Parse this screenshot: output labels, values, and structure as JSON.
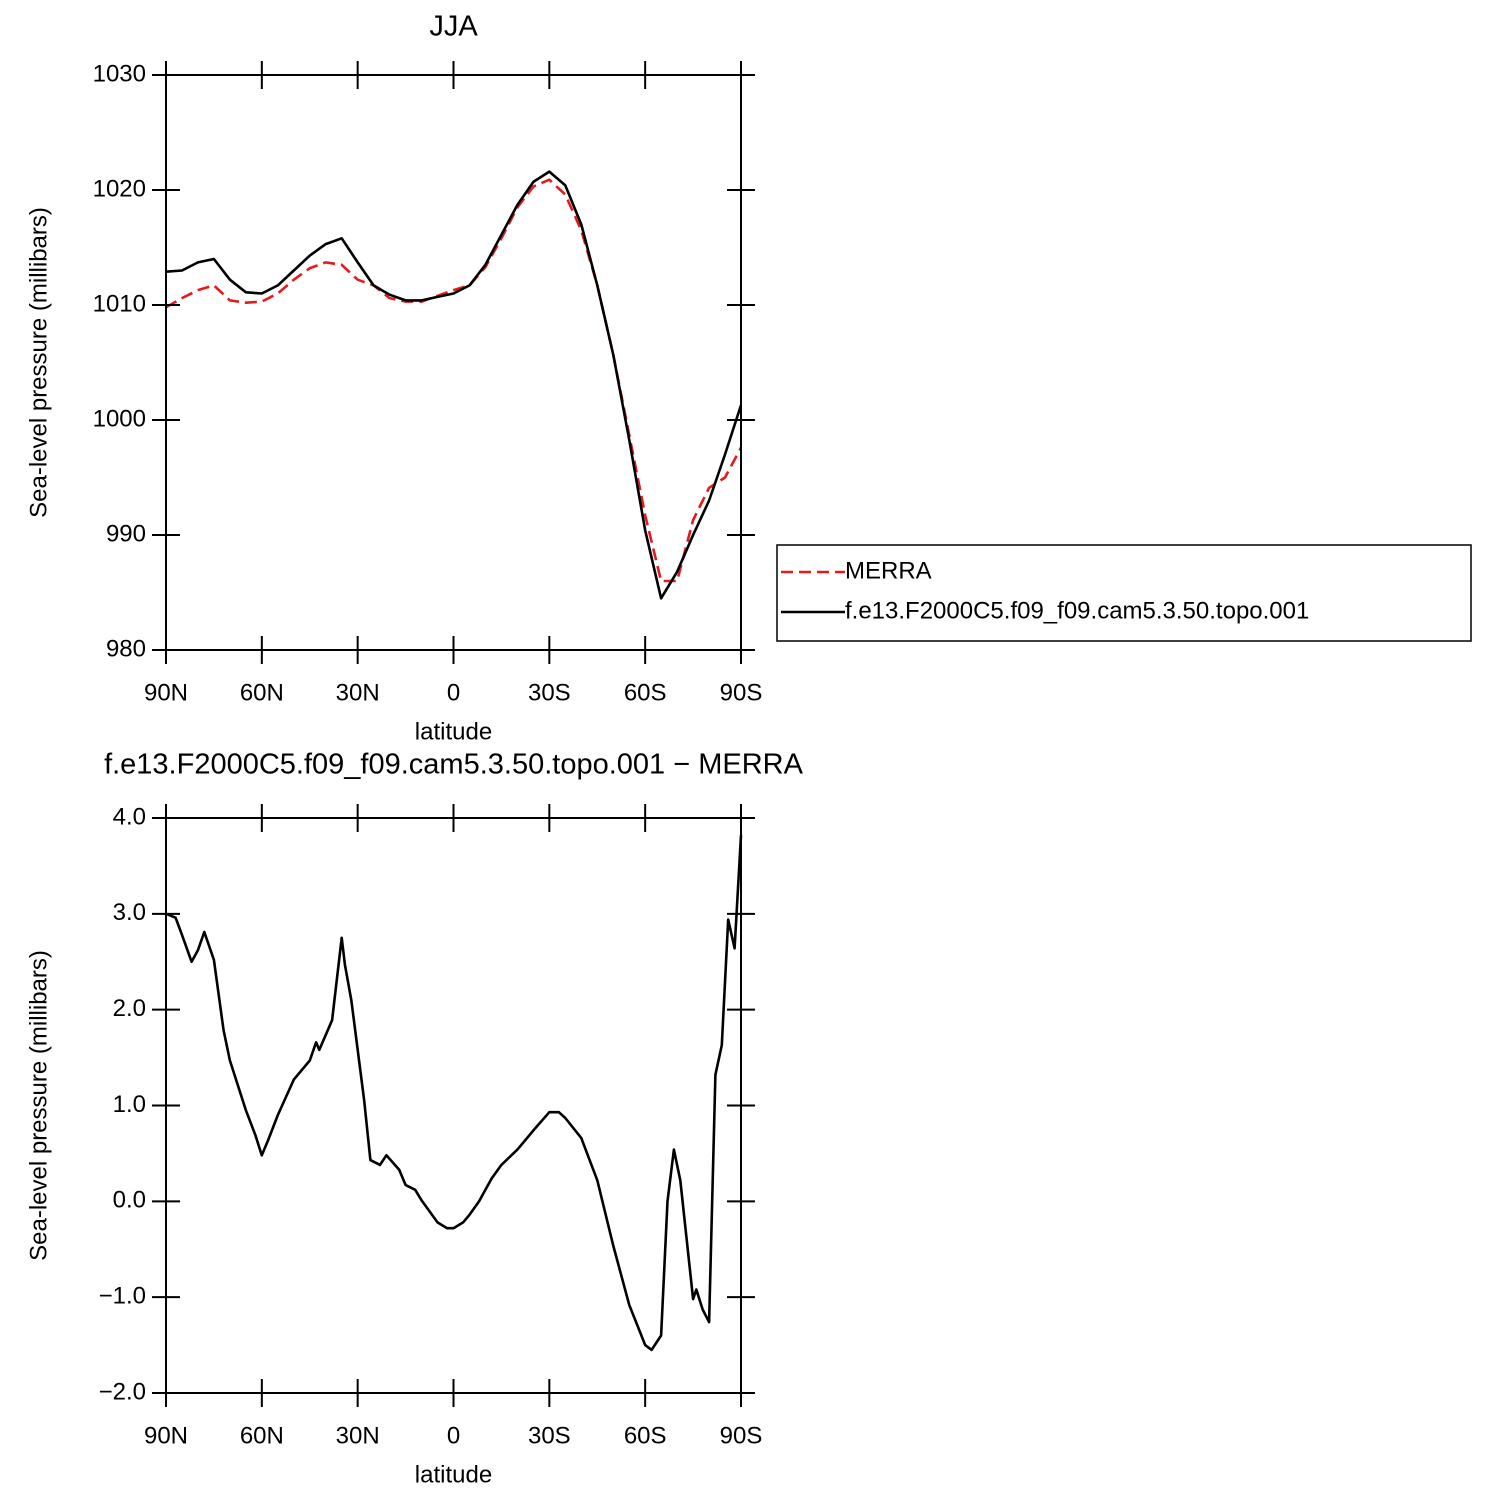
{
  "chart_data": [
    {
      "type": "line",
      "title": "JJA",
      "xlabel": "latitude",
      "ylabel": "Sea-level pressure (millibars)",
      "x": [
        90,
        85,
        80,
        75,
        70,
        65,
        60,
        55,
        50,
        45,
        40,
        35,
        30,
        25,
        20,
        15,
        10,
        5,
        0,
        -5,
        -10,
        -15,
        -20,
        -25,
        -30,
        -35,
        -40,
        -45,
        -50,
        -55,
        -60,
        -65,
        -70,
        -75,
        -80,
        -85,
        -90
      ],
      "xlim": [
        90,
        -90
      ],
      "xticks": [
        {
          "value": 90,
          "label": "90N"
        },
        {
          "value": 60,
          "label": "60N"
        },
        {
          "value": 30,
          "label": "30N"
        },
        0,
        {
          "value": -30,
          "label": "30S"
        },
        {
          "value": -60,
          "label": "60S"
        },
        {
          "value": -90,
          "label": "90S"
        }
      ],
      "ylim": [
        980,
        1030
      ],
      "yticks": [
        980,
        990,
        1000,
        1010,
        1020,
        1030
      ],
      "series": [
        {
          "name": "MERRA",
          "color": "#e41a1c",
          "dash": "dashed",
          "values": [
            1009.8,
            1010.6,
            1011.3,
            1011.7,
            1010.4,
            1010.2,
            1010.3,
            1011.0,
            1012.2,
            1013.2,
            1013.7,
            1013.5,
            1012.2,
            1011.7,
            1010.6,
            1010.3,
            1010.3,
            1010.8,
            1011.3,
            1011.7,
            1013.3,
            1015.8,
            1018.5,
            1020.3,
            1020.9,
            1019.6,
            1016.5,
            1011.7,
            1005.7,
            998.7,
            991.7,
            986.0,
            986.0,
            991.3,
            994.1,
            995.0,
            997.6
          ]
        },
        {
          "name": "f.e13.F2000C5.f09_f09.cam5.3.50.topo.001",
          "color": "#000000",
          "dash": "solid",
          "values": [
            1012.9,
            1013.0,
            1013.7,
            1014.0,
            1012.2,
            1011.1,
            1011.0,
            1011.7,
            1013.0,
            1014.3,
            1015.3,
            1015.8,
            1013.7,
            1011.7,
            1010.9,
            1010.4,
            1010.4,
            1010.7,
            1011.0,
            1011.7,
            1013.5,
            1016.1,
            1018.7,
            1020.7,
            1021.6,
            1020.4,
            1017.0,
            1011.7,
            1005.7,
            998.3,
            990.4,
            984.5,
            986.8,
            990.0,
            993.0,
            997.0,
            1001.3
          ]
        }
      ]
    },
    {
      "type": "line",
      "title": "f.e13.F2000C5.f09_f09.cam5.3.50.topo.001 − MERRA",
      "xlabel": "latitude",
      "ylabel": "Sea-level pressure (millibars)",
      "x": [
        90,
        87,
        85,
        82,
        80,
        78,
        75,
        72,
        70,
        65,
        62,
        60,
        58,
        55,
        50,
        45,
        43,
        42,
        38,
        35,
        34,
        32,
        30,
        28,
        26,
        23,
        21,
        17,
        15,
        12,
        10,
        5,
        2,
        0,
        -3,
        -5,
        -8,
        -10,
        -12,
        -15,
        -20,
        -25,
        -30,
        -33,
        -35,
        -40,
        -45,
        -50,
        -55,
        -60,
        -62,
        -65,
        -67,
        -69,
        -71,
        -73,
        -75,
        -76,
        -78,
        -80,
        -82,
        -84,
        -86,
        -88,
        -90
      ],
      "xlim": [
        90,
        -90
      ],
      "xticks": [
        {
          "value": 90,
          "label": "90N"
        },
        {
          "value": 60,
          "label": "60N"
        },
        {
          "value": 30,
          "label": "30N"
        },
        0,
        {
          "value": -30,
          "label": "30S"
        },
        {
          "value": -60,
          "label": "60S"
        },
        {
          "value": -90,
          "label": "90S"
        }
      ],
      "ylim": [
        -2,
        4
      ],
      "yticks": [
        {
          "value": -2,
          "label": "−2.0"
        },
        {
          "value": -1,
          "label": "−1.0"
        },
        {
          "value": 0,
          "label": "0.0"
        },
        {
          "value": 1,
          "label": "1.0"
        },
        {
          "value": 2,
          "label": "2.0"
        },
        {
          "value": 3,
          "label": "3.0"
        },
        {
          "value": 4,
          "label": "4.0"
        }
      ],
      "series": [
        {
          "color": "#000000",
          "dash": "solid",
          "values": [
            3.0,
            2.96,
            2.78,
            2.5,
            2.62,
            2.81,
            2.52,
            1.79,
            1.47,
            0.95,
            0.69,
            0.48,
            0.64,
            0.9,
            1.27,
            1.47,
            1.66,
            1.58,
            1.89,
            2.75,
            2.47,
            2.1,
            1.58,
            1.06,
            0.43,
            0.38,
            0.48,
            0.33,
            0.17,
            0.12,
            0.01,
            -0.22,
            -0.28,
            -0.28,
            -0.22,
            -0.14,
            0.0,
            0.12,
            0.24,
            0.38,
            0.54,
            0.74,
            0.93,
            0.93,
            0.87,
            0.66,
            0.22,
            -0.46,
            -1.08,
            -1.5,
            -1.55,
            -1.4,
            0.0,
            0.54,
            0.22,
            -0.4,
            -1.02,
            -0.92,
            -1.13,
            -1.26,
            1.32,
            1.63,
            2.94,
            2.64,
            3.82
          ]
        }
      ]
    }
  ]
}
